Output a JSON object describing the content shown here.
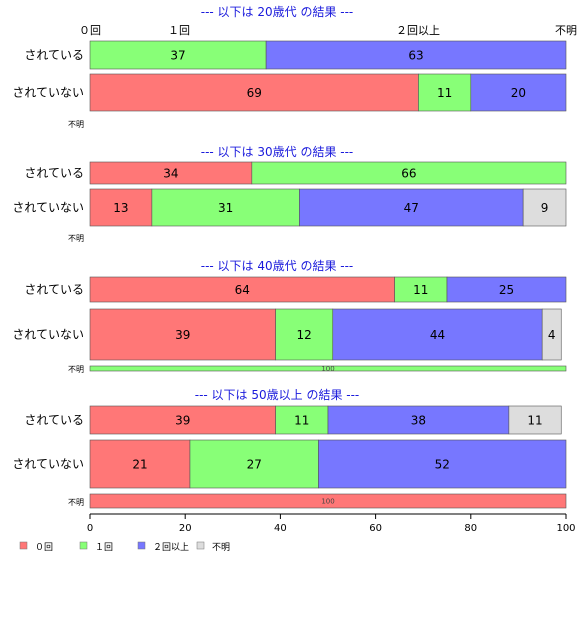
{
  "chart_data": {
    "type": "bar",
    "orientation": "horizontal",
    "stacked": true,
    "xlim": [
      0,
      100
    ],
    "xticks": [
      0,
      20,
      40,
      60,
      80,
      100
    ],
    "top_labels": [
      "０回",
      "１回",
      "２回以上",
      "不明"
    ],
    "legend": [
      {
        "name": "０回",
        "color": "#ff7777"
      },
      {
        "name": "１回",
        "color": "#88ff77"
      },
      {
        "name": "２回以上",
        "color": "#7777ff"
      },
      {
        "name": "不明",
        "color": "#dddddd"
      }
    ],
    "panels": [
      {
        "title": "--- 以下は 20歳代 の結果 ---",
        "rows": [
          {
            "label": "されている",
            "values": [
              0,
              37,
              63,
              0
            ],
            "show": [
              false,
              true,
              true,
              false
            ]
          },
          {
            "label": "されていない",
            "values": [
              69,
              11,
              20,
              0
            ],
            "show": [
              true,
              true,
              true,
              false
            ]
          },
          {
            "label": "不明",
            "values": [],
            "total": null,
            "small": true
          }
        ]
      },
      {
        "title": "--- 以下は 30歳代 の結果 ---",
        "rows": [
          {
            "label": "されている",
            "values": [
              34,
              66,
              0,
              0
            ],
            "show": [
              true,
              true,
              false,
              false
            ]
          },
          {
            "label": "されていない",
            "values": [
              13,
              31,
              47,
              9
            ],
            "show": [
              true,
              true,
              true,
              true
            ]
          },
          {
            "label": "不明",
            "values": [],
            "total": null,
            "small": true
          }
        ]
      },
      {
        "title": "--- 以下は 40歳代 の結果 ---",
        "rows": [
          {
            "label": "されている",
            "values": [
              64,
              11,
              25,
              0
            ],
            "show": [
              true,
              true,
              true,
              false
            ]
          },
          {
            "label": "されていない",
            "values": [
              39,
              12,
              44,
              4
            ],
            "show": [
              true,
              true,
              true,
              true
            ]
          },
          {
            "label": "不明",
            "values": [
              0,
              100,
              0,
              0
            ],
            "total": "100",
            "small": true
          }
        ]
      },
      {
        "title": "--- 以下は 50歳以上 の結果 ---",
        "rows": [
          {
            "label": "されている",
            "values": [
              39,
              11,
              38,
              11
            ],
            "show": [
              true,
              true,
              true,
              true
            ]
          },
          {
            "label": "されていない",
            "values": [
              21,
              27,
              52,
              0
            ],
            "show": [
              true,
              true,
              true,
              false
            ]
          },
          {
            "label": "不明",
            "values": [
              100,
              0,
              0,
              0
            ],
            "total": "100",
            "small": true
          }
        ]
      }
    ]
  }
}
